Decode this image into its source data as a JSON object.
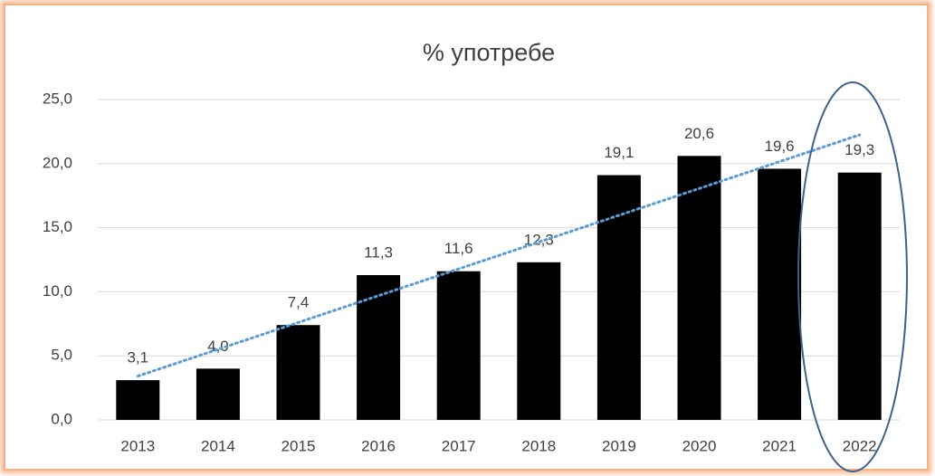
{
  "chart_data": {
    "type": "bar",
    "title": "% употребе",
    "categories": [
      "2013",
      "2014",
      "2015",
      "2016",
      "2017",
      "2018",
      "2019",
      "2020",
      "2021",
      "2022"
    ],
    "values": [
      3.1,
      4.0,
      7.4,
      11.3,
      11.6,
      12.3,
      19.1,
      20.6,
      19.6,
      19.3
    ],
    "value_labels": [
      "3,1",
      "4,0",
      "7,4",
      "11,3",
      "11,6",
      "12,3",
      "19,1",
      "20,6",
      "19,6",
      "19,3"
    ],
    "color": "#000000",
    "ylim": [
      0,
      25
    ],
    "yticks": [
      {
        "value": 0,
        "label": "0,0"
      },
      {
        "value": 5,
        "label": "5,0"
      },
      {
        "value": 10,
        "label": "10,0"
      },
      {
        "value": 15,
        "label": "15,0"
      },
      {
        "value": 20,
        "label": "20,0"
      },
      {
        "value": 25,
        "label": "25,0"
      }
    ],
    "grid": true,
    "trendline": {
      "kind": "linear",
      "color": "#5b9bd5"
    }
  }
}
